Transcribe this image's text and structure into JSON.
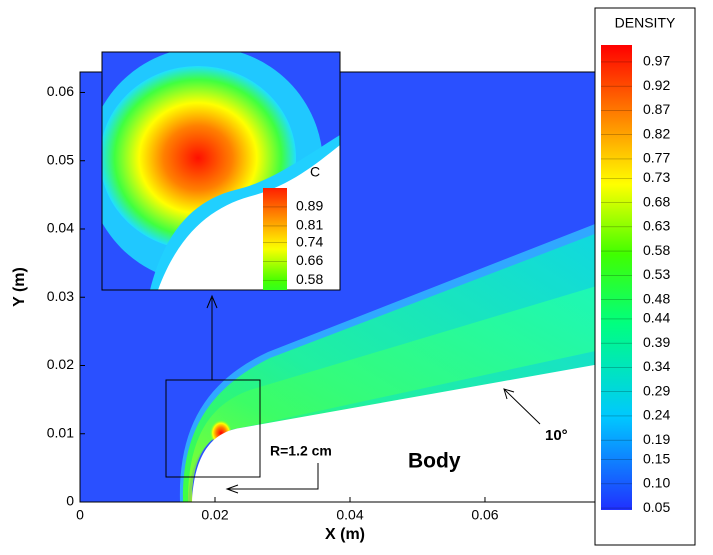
{
  "chart_data": {
    "type": "contour",
    "xlabel": "X (m)",
    "ylabel": "Y (m)",
    "xlim": [
      0,
      0.0763
    ],
    "ylim": [
      0,
      0.063
    ],
    "xticks": [
      0,
      0.02,
      0.04,
      0.06
    ],
    "yticks": [
      0,
      0.01,
      0.02,
      0.03,
      0.04,
      0.05,
      0.06
    ],
    "colorbar": {
      "title": "DENSITY",
      "clim": [
        0.046,
        1.005
      ],
      "levels": [
        0.97,
        0.92,
        0.87,
        0.82,
        0.77,
        0.73,
        0.68,
        0.63,
        0.58,
        0.53,
        0.48,
        0.44,
        0.39,
        0.34,
        0.29,
        0.24,
        0.19,
        0.15,
        {
          "value": 0.1,
          "label": "0.10"
        },
        0.05
      ]
    },
    "inset": {
      "colorbar": {
        "title": "C",
        "clim": [
          0.54,
          0.97
        ],
        "levels": [
          0.89,
          0.81,
          0.74,
          0.66,
          0.58
        ]
      }
    },
    "annotations": [
      "R=1.2 cm",
      "Body",
      "10°"
    ]
  }
}
